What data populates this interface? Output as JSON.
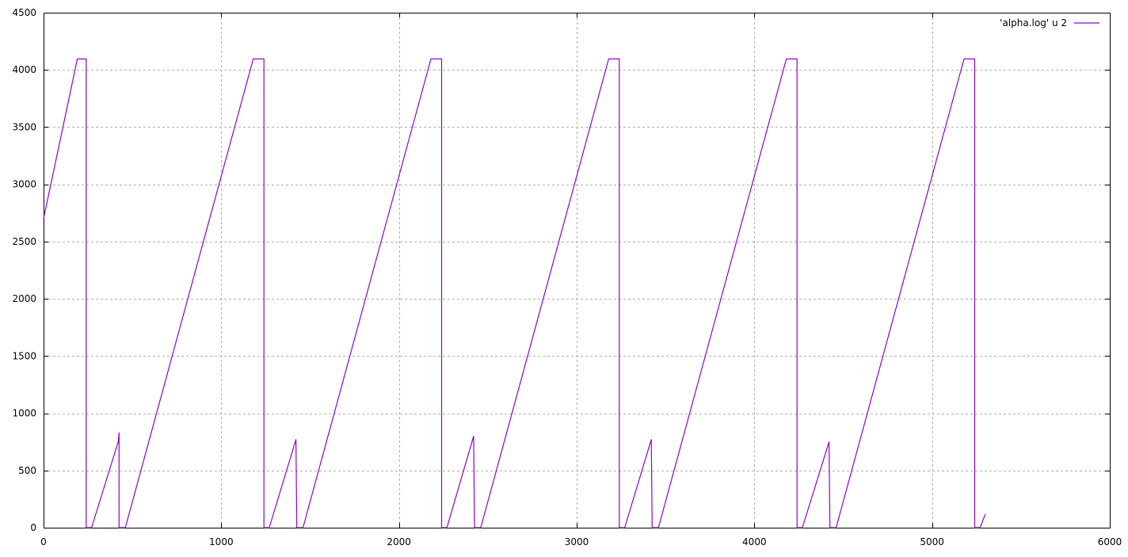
{
  "chart_data": {
    "type": "line",
    "title": "",
    "xlabel": "",
    "ylabel": "",
    "xlim": [
      0,
      6000
    ],
    "ylim": [
      0,
      4500
    ],
    "x_ticks": [
      "0",
      "1000",
      "2000",
      "3000",
      "4000",
      "5000",
      "6000"
    ],
    "y_ticks": [
      "0",
      "500",
      "1000",
      "1500",
      "2000",
      "2500",
      "3000",
      "3500",
      "4000",
      "4500"
    ],
    "grid": true,
    "legend_position": "top-right",
    "series": [
      {
        "name": "'alpha.log' u 2",
        "color": "#9400d3",
        "points": [
          [
            0,
            2700
          ],
          [
            190,
            4096
          ],
          [
            240,
            4096
          ],
          [
            240,
            0
          ],
          [
            270,
            0
          ],
          [
            420,
            750
          ],
          [
            425,
            830
          ],
          [
            425,
            0
          ],
          [
            460,
            0
          ],
          [
            1180,
            4096
          ],
          [
            1240,
            4096
          ],
          [
            1240,
            0
          ],
          [
            1270,
            0
          ],
          [
            1420,
            770
          ],
          [
            1425,
            0
          ],
          [
            1460,
            0
          ],
          [
            2180,
            4096
          ],
          [
            2240,
            4096
          ],
          [
            2240,
            0
          ],
          [
            2270,
            0
          ],
          [
            2420,
            800
          ],
          [
            2425,
            0
          ],
          [
            2460,
            0
          ],
          [
            3180,
            4096
          ],
          [
            3240,
            4096
          ],
          [
            3240,
            0
          ],
          [
            3270,
            0
          ],
          [
            3420,
            770
          ],
          [
            3425,
            0
          ],
          [
            3460,
            0
          ],
          [
            4180,
            4096
          ],
          [
            4240,
            4096
          ],
          [
            4240,
            0
          ],
          [
            4270,
            0
          ],
          [
            4420,
            750
          ],
          [
            4425,
            0
          ],
          [
            4460,
            0
          ],
          [
            5180,
            4096
          ],
          [
            5240,
            4096
          ],
          [
            5240,
            0
          ],
          [
            5270,
            0
          ],
          [
            5300,
            120
          ]
        ]
      }
    ]
  }
}
